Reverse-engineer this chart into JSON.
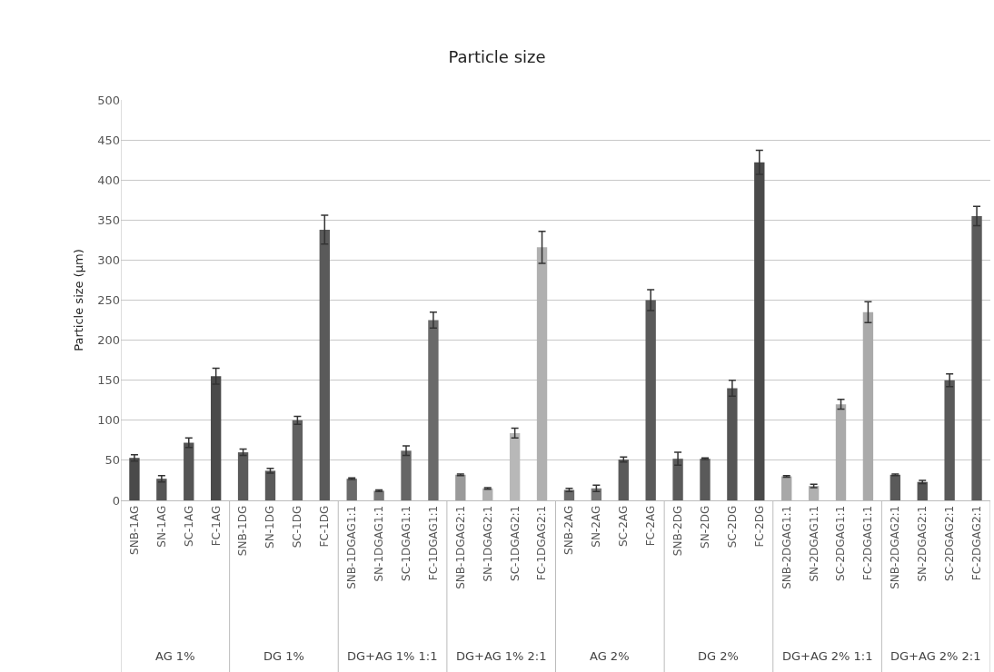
{
  "chart_data": {
    "type": "bar",
    "title": "Particle size",
    "ylabel": "Particle size (μm)",
    "categories": [
      "SNB-1AG",
      "SN-1AG",
      "SC-1AG",
      "FC-1AG",
      "SNB-1DG",
      "SN-1DG",
      "SC-1DG",
      "FC-1DG",
      "SNB-1DGAG1:1",
      "SN-1DGAG1:1",
      "SC-1DGAG1:1",
      "FC-1DGAG1:1",
      "SNB-1DGAG2:1",
      "SN-1DGAG2:1",
      "SC-1DGAG2:1",
      "FC-1DGAG2:1",
      "SNB-2AG",
      "SN-2AG",
      "SC-2AG",
      "FC-2AG",
      "SNB-2DG",
      "SN-2DG",
      "SC-2DG",
      "FC-2DG",
      "SNB-2DGAG1:1",
      "SN-2DGAG1:1",
      "SC-2DGAG1:1",
      "FC-2DGAG1:1",
      "SNB-2DGAG2:1",
      "SN-2DGAG2:1",
      "SC-2DGAG2:1",
      "FC-2DGAG2:1"
    ],
    "values": [
      53,
      27,
      72,
      155,
      60,
      37,
      100,
      338,
      27,
      12,
      62,
      225,
      32,
      15,
      84,
      316,
      13,
      15,
      51,
      250,
      52,
      52,
      140,
      422,
      30,
      18,
      120,
      235,
      32,
      23,
      150,
      355
    ],
    "errors": [
      4,
      4,
      6,
      10,
      4,
      3,
      5,
      18,
      1,
      1,
      6,
      10,
      1,
      1,
      6,
      20,
      2,
      4,
      3,
      13,
      8,
      1,
      10,
      15,
      1,
      2,
      6,
      13,
      1,
      2,
      8,
      12
    ],
    "colors": [
      "#4a4a4a",
      "#555555",
      "#555555",
      "#4a4a4a",
      "#5a5a5a",
      "#5a5a5a",
      "#606060",
      "#5a5a5a",
      "#6a6a6a",
      "#777777",
      "#666666",
      "#6a6a6a",
      "#9a9a9a",
      "#b0b0b0",
      "#b8b8b8",
      "#b0b0b0",
      "#6a6a6a",
      "#777777",
      "#5a5a5a",
      "#5a5a5a",
      "#5a5a5a",
      "#5a5a5a",
      "#555555",
      "#4a4a4a",
      "#a8a8a8",
      "#b0b0b0",
      "#aaaaaa",
      "#aaaaaa",
      "#5a5a5a",
      "#555555",
      "#5a5a5a",
      "#5a5a5a"
    ],
    "ylim": [
      0,
      500
    ],
    "yticks": [
      0,
      50,
      100,
      150,
      200,
      250,
      300,
      350,
      400,
      450,
      500
    ],
    "grid": "y",
    "legend": false,
    "annotations": [
      "AG 1%",
      "DG 1%",
      "DG+AG 1% 1:1",
      "DG+AG 1% 2:1",
      "AG 2%",
      "DG 2%",
      "DG+AG 2% 1:1",
      "DG+AG 2% 2:1"
    ]
  }
}
